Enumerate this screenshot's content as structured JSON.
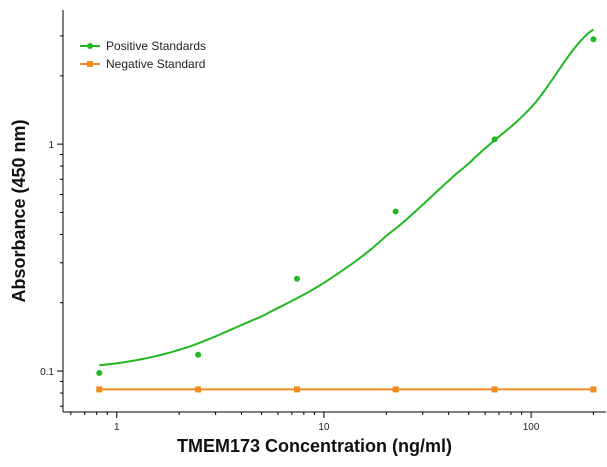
{
  "chart_data": {
    "type": "scatter",
    "title": "",
    "xlabel": "TMEM173 Concentration (ng/ml)",
    "ylabel": "Absorbance (450 nm)",
    "x_scale": "log",
    "y_scale": "log",
    "xlim": [
      0.55,
      230
    ],
    "ylim": [
      0.066,
      3.9
    ],
    "x_ticks": [
      1,
      10,
      100
    ],
    "x_tick_labels": [
      "1",
      "10",
      "100"
    ],
    "y_ticks": [
      0.1,
      1
    ],
    "y_tick_labels": [
      "0.1",
      "1"
    ],
    "grid": false,
    "legend_position": "top-left",
    "series": [
      {
        "name": "Positive Standards",
        "color": "#22b822",
        "marker": "circle",
        "fit_line": true,
        "x": [
          0.823,
          2.47,
          7.41,
          22.2,
          66.7,
          200
        ],
        "y": [
          0.098,
          0.118,
          0.255,
          0.505,
          1.05,
          2.9
        ],
        "fit": {
          "x": [
            0.823,
            2,
            5,
            10,
            20,
            50,
            100,
            200
          ],
          "y": [
            0.106,
            0.124,
            0.174,
            0.245,
            0.395,
            0.82,
            1.45,
            3.2
          ]
        }
      },
      {
        "name": "Negative Standard",
        "color": "#f08c1e",
        "marker": "square",
        "fit_line": true,
        "x": [
          0.823,
          2.47,
          7.41,
          22.2,
          66.7,
          200
        ],
        "y": [
          0.083,
          0.083,
          0.083,
          0.083,
          0.083,
          0.083
        ]
      }
    ]
  }
}
